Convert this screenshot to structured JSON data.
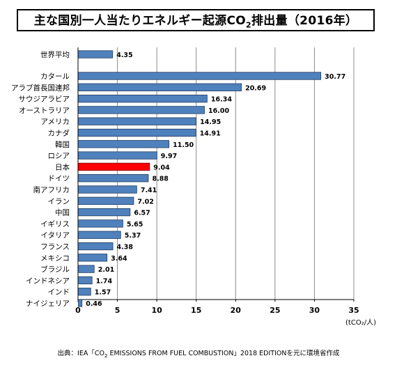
{
  "title": {
    "prefix": "主な国別一人当たりエネルギー起源CO",
    "sub": "2",
    "suffix": "排出量（2016年）"
  },
  "source": {
    "prefix": "出典：IEA「CO",
    "sub": "2",
    "suffix": " EMISSIONS FROM FUEL COMBUSTION」2018 EDITIONを元に環境省作成"
  },
  "chart_data": {
    "type": "bar",
    "orientation": "horizontal",
    "xlim": [
      0,
      35
    ],
    "xticks": [
      0,
      5,
      10,
      15,
      20,
      25,
      30,
      35
    ],
    "unit_label": "(tCO₂/人)",
    "grid": true,
    "colors": {
      "default": "#4f81bd",
      "highlight": "#ff0000",
      "border": "#1f3a5f"
    },
    "categories": [
      "世界平均",
      "カタール",
      "アラブ首長国連邦",
      "サウジアラビア",
      "オーストラリア",
      "アメリカ",
      "カナダ",
      "韓国",
      "ロシア",
      "日本",
      "ドイツ",
      "南アフリカ",
      "イラン",
      "中国",
      "イギリス",
      "イタリア",
      "フランス",
      "メキシコ",
      "ブラジル",
      "インドネシア",
      "インド",
      "ナイジェリア"
    ],
    "values": [
      4.35,
      30.77,
      20.69,
      16.34,
      16.0,
      14.95,
      14.91,
      11.5,
      9.97,
      9.04,
      8.88,
      7.41,
      7.02,
      6.57,
      5.65,
      5.37,
      4.38,
      3.64,
      2.01,
      1.74,
      1.57,
      0.46
    ],
    "value_labels": [
      "4.35",
      "30.77",
      "20.69",
      "16.34",
      "16.00",
      "14.95",
      "14.91",
      "11.50",
      "9.97",
      "9.04",
      "8.88",
      "7.41",
      "7.02",
      "6.57",
      "5.65",
      "5.37",
      "4.38",
      "3.64",
      "2.01",
      "1.74",
      "1.57",
      "0.46"
    ],
    "highlight_category": "日本"
  }
}
